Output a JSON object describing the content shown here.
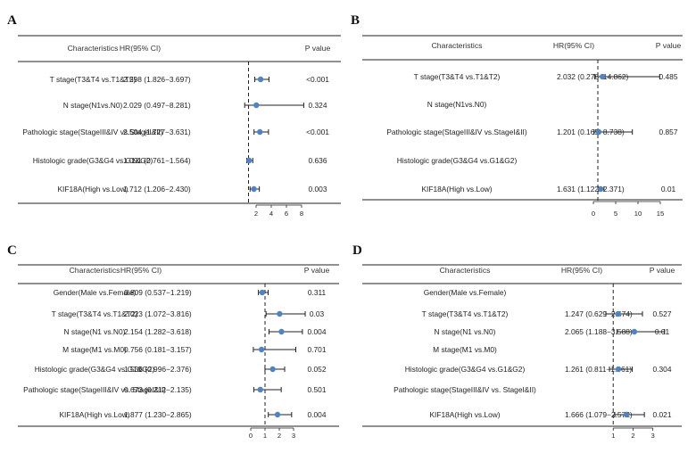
{
  "colors": {
    "point": "#4f84c4",
    "line": "#222222",
    "refline": "#222222"
  },
  "chart_data": [
    {
      "type": "forest",
      "panel_label": "A",
      "headers": {
        "characteristics": "Characteristics",
        "hr": "HR(95% CI)",
        "p": "P value"
      },
      "reference_line": 1,
      "xlim": [
        0,
        10
      ],
      "x_ticks": [
        2,
        4,
        6,
        8
      ],
      "rows": [
        {
          "label": "T stage(T3&T4 vs.T1&T2)",
          "hr_text": "2.598 (1.826−3.697)",
          "p": "<0.001",
          "hr": 2.598,
          "lo": 1.826,
          "hi": 3.697
        },
        {
          "label": "N stage(N1vs.N0)",
          "hr_text": "2.029 (0.497−8.281)",
          "p": "0.324",
          "hr": 2.029,
          "lo": 0.497,
          "hi": 8.281
        },
        {
          "label": "Pathologic stage(StageIII&IV vs.StageI&II)",
          "hr_text": "2.504 (1.727−3.631)",
          "p": "<0.001",
          "hr": 2.504,
          "lo": 1.727,
          "hi": 3.631
        },
        {
          "label": "Histologic grade(G3&G4 vs.G1&G2)",
          "hr_text": "1.091 (0.761−1.564)",
          "p": "0.636",
          "hr": 1.091,
          "lo": 0.761,
          "hi": 1.564
        },
        {
          "label": "KIF18A(High vs.Low)",
          "hr_text": "1.712 (1.206−2.430)",
          "p": "0.003",
          "hr": 1.712,
          "lo": 1.206,
          "hi": 2.43
        }
      ]
    },
    {
      "type": "forest",
      "panel_label": "B",
      "headers": {
        "characteristics": "Characteristics",
        "hr": "HR(95% CI)",
        "p": "P value"
      },
      "reference_line": 1,
      "xlim": [
        -1,
        17
      ],
      "x_ticks": [
        0,
        5,
        10,
        15
      ],
      "rows": [
        {
          "label": "T stage(T3&T4 vs.T1&T2)",
          "hr_text": "2.032 (0.278−14.862)",
          "p": "0.485",
          "hr": 2.032,
          "lo": 0.278,
          "hi": 14.862
        },
        {
          "label": "N stage(N1vs.N0)",
          "hr_text": "",
          "p": ""
        },
        {
          "label": "Pathologic stage(StageIII&IV vs.StageI&II)",
          "hr_text": "1.201 (0.165−8.738)",
          "p": "0.857",
          "hr": 1.201,
          "lo": 0.165,
          "hi": 8.738
        },
        {
          "label": "Histologic grade(G3&G4 vs.G1&G2)",
          "hr_text": "",
          "p": ""
        },
        {
          "label": "KIF18A(High vs.Low)",
          "hr_text": "1.631 (1.122−2.371)",
          "p": "0.01",
          "hr": 1.631,
          "lo": 1.122,
          "hi": 2.371
        }
      ]
    },
    {
      "type": "forest",
      "panel_label": "C",
      "headers": {
        "characteristics": "Characteristics",
        "hr": "HR(95% CI)",
        "p": "P value"
      },
      "reference_line": 1,
      "xlim": [
        0,
        4
      ],
      "x_ticks": [
        0,
        1,
        2,
        3
      ],
      "rows": [
        {
          "label": "Gender(Male vs.Female)",
          "hr_text": "0.809 (0.537−1.219)",
          "p": "0.311",
          "hr": 0.809,
          "lo": 0.537,
          "hi": 1.219
        },
        {
          "label": "T stage(T3&T4 vs.T1&T2)",
          "hr_text": "2.023 (1.072−3.816)",
          "p": "0.03",
          "hr": 2.023,
          "lo": 1.072,
          "hi": 3.816
        },
        {
          "label": "N stage(N1 vs.N0)",
          "hr_text": "2.154 (1.282−3.618)",
          "p": "0.004",
          "hr": 2.154,
          "lo": 1.282,
          "hi": 3.618
        },
        {
          "label": "M stage(M1 vs.M0)",
          "hr_text": "0.756 (0.181−3.157)",
          "p": "0.701",
          "hr": 0.756,
          "lo": 0.181,
          "hi": 3.157
        },
        {
          "label": "Histologic grade(G3&G4 vs.G1&G2)",
          "hr_text": "1.538 (0.996−2.376)",
          "p": "0.052",
          "hr": 1.538,
          "lo": 0.996,
          "hi": 2.376
        },
        {
          "label": "Pathologic stage(StageIII&IV vs. StageI&II)",
          "hr_text": "0.673 (0.212−2.135)",
          "p": "0.501",
          "hr": 0.673,
          "lo": 0.212,
          "hi": 2.135
        },
        {
          "label": "KIF18A(High vs.Low)",
          "hr_text": "1.877 (1.230−2.865)",
          "p": "0.004",
          "hr": 1.877,
          "lo": 1.23,
          "hi": 2.865
        }
      ]
    },
    {
      "type": "forest",
      "panel_label": "D",
      "headers": {
        "characteristics": "Characteristics",
        "hr": "HR(95% CI)",
        "p": "P value"
      },
      "reference_line": 1,
      "xlim": [
        0,
        3.6
      ],
      "x_ticks": [
        1,
        2,
        3
      ],
      "rows": [
        {
          "label": "Gender(Male vs.Female)",
          "hr_text": "",
          "p": ""
        },
        {
          "label": "T stage(T3&T4 vs.T1&T2)",
          "hr_text": "1.247 (0.629−2.474)",
          "p": "0.527",
          "hr": 1.247,
          "lo": 0.629,
          "hi": 2.474
        },
        {
          "label": "N stage(N1 vs.N0)",
          "hr_text": "2.065 (1.188−3.588)",
          "p": "0.01",
          "hr": 2.065,
          "lo": 1.188,
          "hi": 3.588
        },
        {
          "label": "M stage(M1 vs.M0)",
          "hr_text": "",
          "p": ""
        },
        {
          "label": "Histologic grade(G3&G4 vs.G1&G2)",
          "hr_text": "1.261 (0.811−1.961)",
          "p": "0.304",
          "hr": 1.261,
          "lo": 0.811,
          "hi": 1.961
        },
        {
          "label": "Pathologic stage(StageIII&IV vs. StageI&II)",
          "hr_text": "",
          "p": ""
        },
        {
          "label": "KIF18A(High vs.Low)",
          "hr_text": "1.666 (1.079−2.572)",
          "p": "0.021",
          "hr": 1.666,
          "lo": 1.079,
          "hi": 2.572
        }
      ]
    }
  ]
}
